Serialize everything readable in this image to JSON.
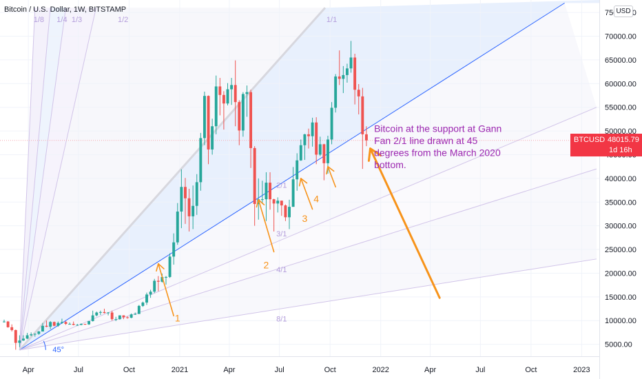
{
  "header": {
    "title": "Bitcoin / U.S. Dollar, 1W, BITSTAMP",
    "currency": "USD"
  },
  "price_label": {
    "symbol": "BTCUSD",
    "value": "48015.79",
    "countdown": "1d 16h"
  },
  "colors": {
    "up": "#26a69a",
    "down": "#ef5350",
    "gann_line": "#2962ff",
    "fan_line": "#d1c4e9",
    "fan_label": "#b39ddb",
    "annotation": "#f7931a",
    "note_text": "#9c27b0",
    "price_line": "#f23645"
  },
  "chart_data": {
    "type": "candlestick",
    "symbol": "BTCUSD",
    "exchange": "BITSTAMP",
    "interval": "1W",
    "x_tick_labels": [
      "Apr",
      "Jul",
      "Oct",
      "2021",
      "Apr",
      "Jul",
      "Oct",
      "2022",
      "Apr",
      "Jul",
      "Oct",
      "2023"
    ],
    "x_tick_dates": [
      "2020-04-01",
      "2020-07-01",
      "2020-10-01",
      "2021-01-01",
      "2021-04-01",
      "2021-07-01",
      "2021-10-01",
      "2022-01-01",
      "2022-04-01",
      "2022-07-01",
      "2022-10-01",
      "2023-01-01"
    ],
    "xlim": [
      "2020-02-17",
      "2023-01-28"
    ],
    "y_tick_labels": [
      "5000.00",
      "10000.00",
      "15000.00",
      "20000.00",
      "25000.00",
      "30000.00",
      "35000.00",
      "40000.00",
      "45000.00",
      "50000.00",
      "55000.00",
      "60000.00",
      "65000.00",
      "70000.00",
      "75000.00"
    ],
    "ylim": [
      3200,
      77200
    ],
    "last_price": 48015.79,
    "candles": [
      {
        "date": "2020-02-17",
        "o": 9700,
        "h": 10200,
        "l": 9600,
        "c": 9800
      },
      {
        "date": "2020-02-24",
        "o": 9800,
        "h": 9900,
        "l": 8500,
        "c": 8600
      },
      {
        "date": "2020-03-02",
        "o": 8600,
        "h": 9200,
        "l": 7700,
        "c": 8000
      },
      {
        "date": "2020-03-09",
        "o": 8000,
        "h": 8100,
        "l": 3850,
        "c": 5300
      },
      {
        "date": "2020-03-16",
        "o": 5300,
        "h": 6900,
        "l": 4400,
        "c": 5800
      },
      {
        "date": "2020-03-23",
        "o": 5800,
        "h": 6900,
        "l": 5700,
        "c": 6200
      },
      {
        "date": "2020-03-30",
        "o": 6200,
        "h": 7400,
        "l": 6100,
        "c": 6900
      },
      {
        "date": "2020-04-06",
        "o": 6900,
        "h": 7500,
        "l": 6700,
        "c": 7100
      },
      {
        "date": "2020-04-13",
        "o": 7100,
        "h": 7300,
        "l": 6600,
        "c": 7200
      },
      {
        "date": "2020-04-20",
        "o": 7200,
        "h": 7800,
        "l": 7000,
        "c": 7700
      },
      {
        "date": "2020-04-27",
        "o": 7700,
        "h": 9500,
        "l": 7700,
        "c": 8900
      },
      {
        "date": "2020-05-04",
        "o": 8900,
        "h": 10000,
        "l": 8600,
        "c": 8700
      },
      {
        "date": "2020-05-11",
        "o": 8700,
        "h": 9900,
        "l": 8200,
        "c": 9700
      },
      {
        "date": "2020-05-18",
        "o": 9700,
        "h": 9800,
        "l": 8800,
        "c": 8900
      },
      {
        "date": "2020-05-25",
        "o": 8900,
        "h": 9800,
        "l": 8700,
        "c": 9500
      },
      {
        "date": "2020-06-01",
        "o": 9500,
        "h": 10400,
        "l": 9300,
        "c": 9700
      },
      {
        "date": "2020-06-08",
        "o": 9700,
        "h": 9900,
        "l": 9100,
        "c": 9300
      },
      {
        "date": "2020-06-15",
        "o": 9300,
        "h": 9600,
        "l": 9200,
        "c": 9300
      },
      {
        "date": "2020-06-22",
        "o": 9300,
        "h": 9800,
        "l": 9000,
        "c": 9100
      },
      {
        "date": "2020-06-29",
        "o": 9100,
        "h": 9300,
        "l": 8900,
        "c": 9100
      },
      {
        "date": "2020-07-06",
        "o": 9100,
        "h": 9400,
        "l": 9000,
        "c": 9300
      },
      {
        "date": "2020-07-13",
        "o": 9300,
        "h": 9300,
        "l": 9100,
        "c": 9200
      },
      {
        "date": "2020-07-20",
        "o": 9200,
        "h": 9900,
        "l": 9100,
        "c": 9900
      },
      {
        "date": "2020-07-27",
        "o": 9900,
        "h": 12100,
        "l": 9800,
        "c": 11100
      },
      {
        "date": "2020-08-03",
        "o": 11100,
        "h": 11900,
        "l": 10900,
        "c": 11700
      },
      {
        "date": "2020-08-10",
        "o": 11700,
        "h": 12100,
        "l": 11200,
        "c": 11800
      },
      {
        "date": "2020-08-17",
        "o": 11800,
        "h": 12500,
        "l": 11500,
        "c": 11600
      },
      {
        "date": "2020-08-24",
        "o": 11600,
        "h": 11800,
        "l": 11100,
        "c": 11700
      },
      {
        "date": "2020-08-31",
        "o": 11700,
        "h": 12100,
        "l": 10000,
        "c": 10300
      },
      {
        "date": "2020-09-07",
        "o": 10300,
        "h": 10800,
        "l": 9900,
        "c": 10300
      },
      {
        "date": "2020-09-14",
        "o": 10300,
        "h": 11100,
        "l": 10200,
        "c": 11100
      },
      {
        "date": "2020-09-21",
        "o": 11100,
        "h": 11100,
        "l": 10300,
        "c": 10700
      },
      {
        "date": "2020-09-28",
        "o": 10700,
        "h": 10900,
        "l": 10400,
        "c": 10600
      },
      {
        "date": "2020-10-05",
        "o": 10600,
        "h": 11500,
        "l": 10500,
        "c": 11300
      },
      {
        "date": "2020-10-12",
        "o": 11300,
        "h": 11700,
        "l": 11200,
        "c": 11400
      },
      {
        "date": "2020-10-19",
        "o": 11400,
        "h": 13300,
        "l": 11400,
        "c": 13100
      },
      {
        "date": "2020-10-26",
        "o": 13100,
        "h": 14000,
        "l": 12900,
        "c": 13800
      },
      {
        "date": "2020-11-02",
        "o": 13800,
        "h": 15900,
        "l": 13300,
        "c": 15500
      },
      {
        "date": "2020-11-09",
        "o": 15500,
        "h": 16500,
        "l": 14800,
        "c": 16100
      },
      {
        "date": "2020-11-16",
        "o": 16100,
        "h": 18800,
        "l": 15800,
        "c": 18400
      },
      {
        "date": "2020-11-23",
        "o": 18400,
        "h": 19400,
        "l": 16200,
        "c": 18200
      },
      {
        "date": "2020-11-30",
        "o": 18200,
        "h": 19900,
        "l": 18000,
        "c": 19200
      },
      {
        "date": "2020-12-07",
        "o": 19200,
        "h": 19400,
        "l": 17600,
        "c": 19200
      },
      {
        "date": "2020-12-14",
        "o": 19200,
        "h": 24200,
        "l": 19000,
        "c": 23500
      },
      {
        "date": "2020-12-21",
        "o": 23500,
        "h": 28400,
        "l": 21800,
        "c": 26500
      },
      {
        "date": "2020-12-28",
        "o": 26500,
        "h": 34800,
        "l": 26000,
        "c": 33000
      },
      {
        "date": "2021-01-04",
        "o": 33000,
        "h": 41900,
        "l": 29500,
        "c": 38200
      },
      {
        "date": "2021-01-11",
        "o": 38200,
        "h": 40100,
        "l": 30400,
        "c": 35800
      },
      {
        "date": "2021-01-18",
        "o": 35800,
        "h": 37800,
        "l": 28800,
        "c": 32000
      },
      {
        "date": "2021-01-25",
        "o": 32000,
        "h": 38500,
        "l": 29300,
        "c": 34200
      },
      {
        "date": "2021-02-01",
        "o": 34200,
        "h": 40900,
        "l": 32300,
        "c": 39200
      },
      {
        "date": "2021-02-08",
        "o": 39200,
        "h": 49600,
        "l": 37400,
        "c": 48500
      },
      {
        "date": "2021-02-15",
        "o": 48500,
        "h": 58300,
        "l": 47000,
        "c": 57400
      },
      {
        "date": "2021-02-22",
        "o": 57400,
        "h": 57500,
        "l": 43000,
        "c": 46100
      },
      {
        "date": "2021-03-01",
        "o": 46100,
        "h": 52600,
        "l": 45000,
        "c": 51000
      },
      {
        "date": "2021-03-08",
        "o": 51000,
        "h": 61700,
        "l": 49300,
        "c": 59400
      },
      {
        "date": "2021-03-15",
        "o": 59400,
        "h": 61200,
        "l": 53300,
        "c": 57600
      },
      {
        "date": "2021-03-22",
        "o": 57600,
        "h": 58400,
        "l": 50300,
        "c": 55800
      },
      {
        "date": "2021-03-29",
        "o": 55800,
        "h": 60100,
        "l": 55400,
        "c": 58800
      },
      {
        "date": "2021-04-05",
        "o": 58800,
        "h": 61200,
        "l": 55500,
        "c": 59700
      },
      {
        "date": "2021-04-12",
        "o": 59700,
        "h": 64900,
        "l": 51000,
        "c": 56100
      },
      {
        "date": "2021-04-19",
        "o": 56100,
        "h": 56500,
        "l": 47000,
        "c": 50100
      },
      {
        "date": "2021-04-26",
        "o": 50100,
        "h": 58200,
        "l": 48800,
        "c": 57800
      },
      {
        "date": "2021-05-03",
        "o": 57800,
        "h": 59600,
        "l": 53000,
        "c": 58200
      },
      {
        "date": "2021-05-10",
        "o": 58200,
        "h": 58700,
        "l": 42200,
        "c": 46400
      },
      {
        "date": "2021-05-17",
        "o": 46400,
        "h": 46800,
        "l": 30000,
        "c": 34600
      },
      {
        "date": "2021-05-24",
        "o": 34600,
        "h": 40000,
        "l": 31300,
        "c": 35600
      },
      {
        "date": "2021-05-31",
        "o": 35600,
        "h": 39500,
        "l": 34600,
        "c": 35600
      },
      {
        "date": "2021-06-07",
        "o": 35600,
        "h": 41300,
        "l": 31000,
        "c": 39100
      },
      {
        "date": "2021-06-14",
        "o": 39100,
        "h": 41300,
        "l": 33400,
        "c": 35600
      },
      {
        "date": "2021-06-21",
        "o": 35600,
        "h": 35700,
        "l": 28800,
        "c": 34700
      },
      {
        "date": "2021-06-28",
        "o": 34700,
        "h": 36000,
        "l": 32800,
        "c": 35300
      },
      {
        "date": "2021-07-05",
        "o": 35300,
        "h": 35300,
        "l": 32100,
        "c": 34300
      },
      {
        "date": "2021-07-12",
        "o": 34300,
        "h": 34500,
        "l": 31000,
        "c": 31800
      },
      {
        "date": "2021-07-19",
        "o": 31800,
        "h": 35500,
        "l": 29300,
        "c": 34000
      },
      {
        "date": "2021-07-26",
        "o": 34000,
        "h": 42400,
        "l": 34000,
        "c": 39800
      },
      {
        "date": "2021-08-02",
        "o": 39800,
        "h": 45300,
        "l": 37400,
        "c": 43800
      },
      {
        "date": "2021-08-09",
        "o": 43800,
        "h": 48200,
        "l": 43700,
        "c": 47000
      },
      {
        "date": "2021-08-16",
        "o": 47000,
        "h": 49400,
        "l": 43900,
        "c": 49300
      },
      {
        "date": "2021-08-23",
        "o": 49300,
        "h": 50500,
        "l": 46300,
        "c": 48900
      },
      {
        "date": "2021-08-30",
        "o": 48900,
        "h": 52800,
        "l": 46700,
        "c": 51800
      },
      {
        "date": "2021-09-06",
        "o": 51800,
        "h": 52900,
        "l": 43000,
        "c": 45000
      },
      {
        "date": "2021-09-13",
        "o": 45000,
        "h": 48800,
        "l": 44700,
        "c": 47200
      },
      {
        "date": "2021-09-20",
        "o": 47200,
        "h": 47300,
        "l": 39600,
        "c": 43200
      },
      {
        "date": "2021-09-27",
        "o": 43200,
        "h": 49000,
        "l": 41000,
        "c": 48200
      },
      {
        "date": "2021-10-04",
        "o": 48200,
        "h": 56100,
        "l": 47200,
        "c": 54900
      },
      {
        "date": "2021-10-11",
        "o": 54900,
        "h": 62000,
        "l": 53900,
        "c": 61500
      },
      {
        "date": "2021-10-18",
        "o": 61500,
        "h": 67000,
        "l": 59700,
        "c": 61000
      },
      {
        "date": "2021-10-25",
        "o": 61000,
        "h": 63700,
        "l": 58000,
        "c": 61800
      },
      {
        "date": "2021-11-01",
        "o": 61800,
        "h": 64200,
        "l": 60200,
        "c": 63200
      },
      {
        "date": "2021-11-08",
        "o": 63200,
        "h": 69000,
        "l": 62300,
        "c": 65500
      },
      {
        "date": "2021-11-15",
        "o": 65500,
        "h": 66300,
        "l": 55600,
        "c": 58700
      },
      {
        "date": "2021-11-22",
        "o": 58700,
        "h": 59900,
        "l": 53500,
        "c": 57300
      },
      {
        "date": "2021-11-29",
        "o": 57300,
        "h": 59100,
        "l": 42000,
        "c": 49300
      },
      {
        "date": "2021-12-06",
        "o": 49300,
        "h": 51000,
        "l": 46800,
        "c": 48015.79
      }
    ],
    "drawings": {
      "gann_fan": {
        "origin": {
          "date": "2020-03-16",
          "price": 3800
        },
        "angle_label": "45°",
        "lines": [
          {
            "label": "1/8",
            "x_date": "2020-04-13",
            "y_price": 76000
          },
          {
            "label": "1/4",
            "x_date": "2020-05-11",
            "y_price": 76000
          },
          {
            "label": "1/3",
            "x_date": "2020-06-08",
            "y_price": 76000
          },
          {
            "label": "1/2",
            "x_date": "2020-08-02",
            "y_price": 76000
          },
          {
            "label": "1/1",
            "x_date": "2021-09-22",
            "y_price": 76000
          },
          {
            "label": "2/1",
            "x_date": "2022-12-01",
            "y_price": 77000,
            "highlight": true
          },
          {
            "label": "3/1",
            "x_date": "2023-01-28",
            "y_price": 55000
          },
          {
            "label": "4/1",
            "x_date": "2023-01-28",
            "y_price": 42000
          },
          {
            "label": "8/1",
            "x_date": "2023-01-28",
            "y_price": 23000
          }
        ],
        "label_positions": [
          {
            "label": "1/8",
            "date": "2020-04-20",
            "price": 73000
          },
          {
            "label": "1/4",
            "date": "2020-06-01",
            "price": 73000
          },
          {
            "label": "1/3",
            "date": "2020-06-28",
            "price": 73000
          },
          {
            "label": "1/2",
            "date": "2020-09-20",
            "price": 73000
          },
          {
            "label": "1/1",
            "date": "2021-10-04",
            "price": 73000
          },
          {
            "label": "2/1",
            "date": "2021-07-05",
            "price": 38000
          },
          {
            "label": "3/1",
            "date": "2021-07-05",
            "price": 27800
          },
          {
            "label": "4/1",
            "date": "2021-07-05",
            "price": 20200
          },
          {
            "label": "8/1",
            "date": "2021-07-05",
            "price": 9800
          }
        ]
      },
      "annotation_arrows": [
        {
          "label": "1",
          "from": {
            "date": "2020-12-21",
            "price": 11000
          },
          "to": {
            "date": "2020-11-23",
            "price": 22000
          },
          "label_at": {
            "date": "2020-12-28",
            "price": 9800
          }
        },
        {
          "label": "2",
          "from": {
            "date": "2021-06-21",
            "price": 24500
          },
          "to": {
            "date": "2021-05-24",
            "price": 35500
          },
          "label_at": {
            "date": "2021-06-07",
            "price": 21000
          }
        },
        {
          "label": "3",
          "from": {
            "date": "2021-08-30",
            "price": 33500
          },
          "to": {
            "date": "2021-08-09",
            "price": 40000
          },
          "label_at": {
            "date": "2021-08-16",
            "price": 30800
          }
        },
        {
          "label": "4",
          "from": {
            "date": "2021-10-11",
            "price": 38200
          },
          "to": {
            "date": "2021-09-27",
            "price": 42500
          },
          "label_at": {
            "date": "2021-09-06",
            "price": 35000
          }
        },
        {
          "label": "",
          "from": {
            "date": "2022-04-18",
            "price": 14800
          },
          "to": {
            "date": "2021-12-13",
            "price": 46300
          },
          "label_at": null
        }
      ],
      "note": {
        "text": "Bitcoin at the support at Gann Fan 2/1 line drawn at 45 degrees from the March 2020 bottom.",
        "lines": [
          "Bitcoin at the support at Gann",
          "Fan 2/1 line drawn at 45",
          "degrees from the March 2020",
          "bottom."
        ],
        "anchor": {
          "date": "2021-12-20",
          "price": 49800
        }
      }
    }
  }
}
